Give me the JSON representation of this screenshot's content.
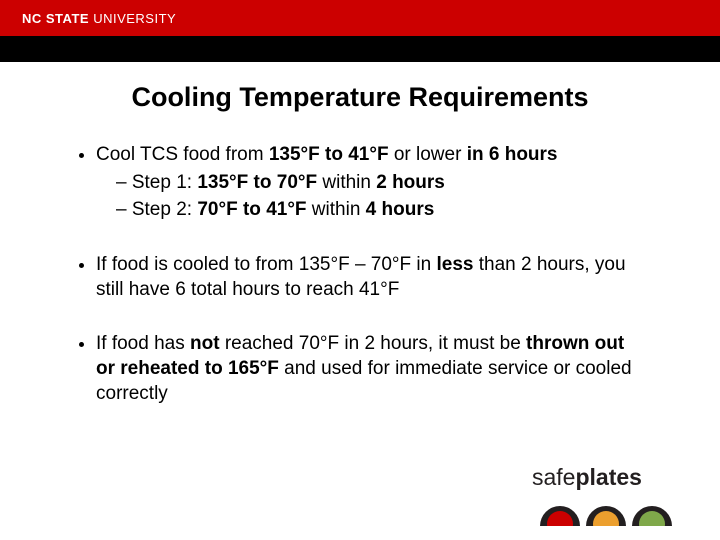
{
  "header": {
    "brand_bold": "NC STATE",
    "brand_light": " UNIVERSITY",
    "bg_color": "#cc0000"
  },
  "title": "Cooling Temperature Requirements",
  "bullets": {
    "b1_pre": "Cool TCS food from ",
    "b1_bold1": "135°F to 41°F",
    "b1_mid": " or lower ",
    "b1_bold2": "in 6 hours",
    "s1_pre": "Step 1: ",
    "s1_bold1": "135°F to 70°F",
    "s1_mid": " within ",
    "s1_bold2": "2 hours",
    "s2_pre": "Step 2: ",
    "s2_bold1": "70°F to 41°F",
    "s2_mid": " within ",
    "s2_bold2": "4 hours",
    "b2_pre": "If food is cooled to from 135°F – 70°F in ",
    "b2_bold": "less",
    "b2_post": " than 2 hours, you still have 6 total hours to reach 41°F",
    "b3_pre": "If food has ",
    "b3_bold1": "not",
    "b3_mid1": " reached 70°F  in 2 hours, it must be ",
    "b3_bold2": "thrown out or reheated to 165°F",
    "b3_post": " and used for immediate service or cooled correctly"
  },
  "logo": {
    "word1": "safe",
    "word2": "plates"
  }
}
